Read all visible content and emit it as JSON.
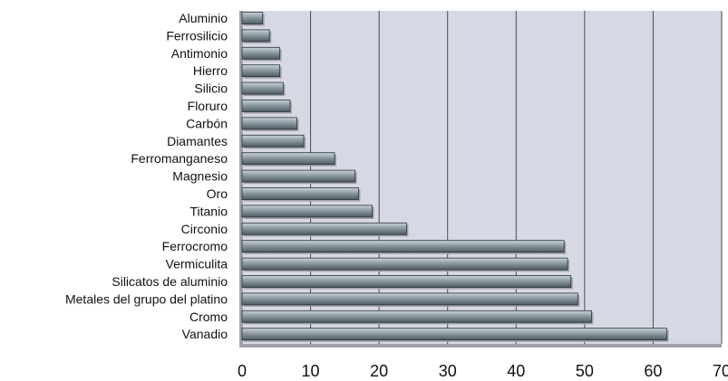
{
  "chart_data": {
    "type": "bar",
    "orientation": "horizontal",
    "title": "",
    "xlabel": "",
    "ylabel": "",
    "xlim": [
      0,
      70
    ],
    "xticks": [
      0,
      10,
      20,
      30,
      40,
      50,
      60,
      70
    ],
    "grid": true,
    "legend": "none",
    "categories": [
      "Aluminio",
      "Ferrosilicio",
      "Antimonio",
      "Hierro",
      "Silicio",
      "Floruro",
      "Carbón",
      "Diamantes",
      "Ferromanganeso",
      "Magnesio",
      "Oro",
      "Titanio",
      "Circonio",
      "Ferrocromo",
      "Vermiculita",
      "Silicatos de aluminio",
      "Metales del grupo del platino",
      "Cromo",
      "Vanadio"
    ],
    "values": [
      3,
      4,
      5.5,
      5.5,
      6,
      7,
      8,
      9,
      13.5,
      16.5,
      17,
      19,
      24,
      47,
      47.5,
      48,
      49,
      51,
      62
    ],
    "colors": {
      "bar_top": "#c9d3d9",
      "bar_mid": "#8d9aa2",
      "bar_bottom": "#4c5a62",
      "bar_outline": "#2a343a",
      "plot_background": "#d6d8e3",
      "grid": "#4a4a55",
      "shadow": "#a0a0a8"
    }
  }
}
